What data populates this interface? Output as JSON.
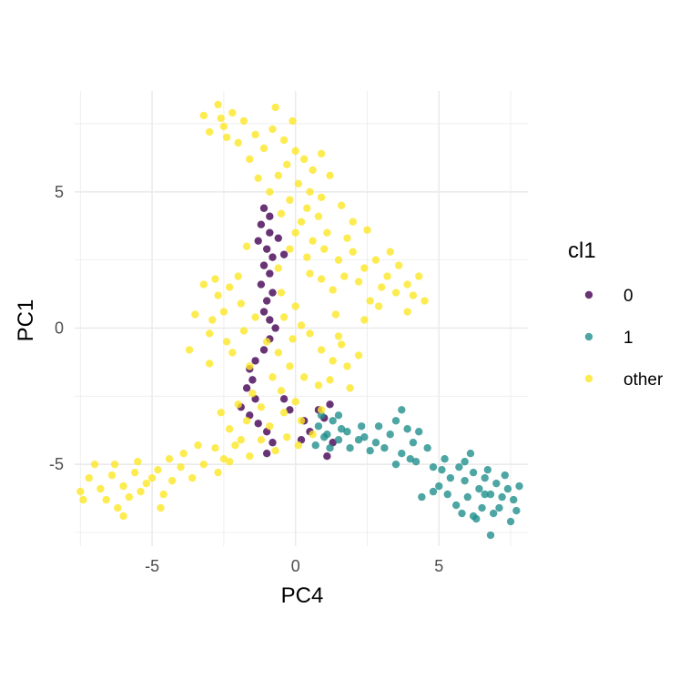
{
  "chart_data": {
    "type": "scatter",
    "title": "",
    "xlabel": "PC4",
    "ylabel": "PC1",
    "xlim": [
      -7.7,
      8.1
    ],
    "ylim": [
      -8.0,
      8.7
    ],
    "x_ticks": [
      -5,
      0,
      5
    ],
    "y_ticks": [
      -5,
      0,
      5
    ],
    "grid": true,
    "legend": {
      "title": "cl1",
      "position": "right"
    },
    "series": [
      {
        "name": "0",
        "color": "#440154",
        "points": [
          [
            -1.1,
            4.4
          ],
          [
            -0.9,
            4.1
          ],
          [
            -1.2,
            3.8
          ],
          [
            -0.9,
            3.5
          ],
          [
            -1.3,
            3.2
          ],
          [
            -1.0,
            2.9
          ],
          [
            -0.8,
            2.6
          ],
          [
            -1.1,
            2.3
          ],
          [
            -0.9,
            2.0
          ],
          [
            -1.2,
            1.6
          ],
          [
            -0.8,
            1.3
          ],
          [
            -1.0,
            1.0
          ],
          [
            -1.1,
            0.6
          ],
          [
            -0.9,
            0.3
          ],
          [
            -0.7,
            0.0
          ],
          [
            -0.9,
            -0.4
          ],
          [
            -1.1,
            -0.8
          ],
          [
            -1.4,
            -1.2
          ],
          [
            -1.6,
            -1.5
          ],
          [
            -1.5,
            -1.9
          ],
          [
            -1.7,
            -2.2
          ],
          [
            -1.4,
            -2.6
          ],
          [
            -1.9,
            -2.9
          ],
          [
            -1.6,
            -3.2
          ],
          [
            -1.3,
            -3.5
          ],
          [
            -1.0,
            -3.8
          ],
          [
            -0.8,
            -4.2
          ],
          [
            -1.0,
            -4.6
          ],
          [
            0.2,
            -4.1
          ],
          [
            0.5,
            -3.8
          ],
          [
            1.0,
            -3.3
          ],
          [
            1.2,
            -2.8
          ],
          [
            1.3,
            -4.2
          ],
          [
            1.1,
            -4.7
          ],
          [
            0.8,
            -3.0
          ],
          [
            -0.4,
            -2.6
          ],
          [
            -0.2,
            -3.0
          ],
          [
            0.3,
            -3.4
          ],
          [
            -0.6,
            3.3
          ],
          [
            -0.4,
            2.7
          ]
        ]
      },
      {
        "name": "1",
        "color": "#21908C",
        "points": [
          [
            0.9,
            -3.2
          ],
          [
            1.3,
            -3.4
          ],
          [
            1.6,
            -3.7
          ],
          [
            1.1,
            -3.9
          ],
          [
            0.8,
            -3.6
          ],
          [
            1.5,
            -4.1
          ],
          [
            1.8,
            -3.8
          ],
          [
            1.2,
            -4.4
          ],
          [
            0.7,
            -4.3
          ],
          [
            1.9,
            -4.4
          ],
          [
            2.2,
            -4.1
          ],
          [
            2.6,
            -4.5
          ],
          [
            2.4,
            -4.0
          ],
          [
            2.9,
            -3.6
          ],
          [
            3.3,
            -3.9
          ],
          [
            3.1,
            -4.4
          ],
          [
            3.7,
            -4.6
          ],
          [
            3.5,
            -3.4
          ],
          [
            3.9,
            -3.7
          ],
          [
            4.1,
            -4.2
          ],
          [
            4.3,
            -3.8
          ],
          [
            4.6,
            -4.4
          ],
          [
            4.2,
            -4.9
          ],
          [
            4.8,
            -5.1
          ],
          [
            5.1,
            -5.2
          ],
          [
            5.4,
            -5.5
          ],
          [
            5.0,
            -5.8
          ],
          [
            5.7,
            -5.1
          ],
          [
            5.9,
            -5.6
          ],
          [
            6.2,
            -5.3
          ],
          [
            6.4,
            -5.9
          ],
          [
            6.6,
            -5.5
          ],
          [
            6.8,
            -6.1
          ],
          [
            7.0,
            -5.7
          ],
          [
            7.2,
            -6.2
          ],
          [
            6.5,
            -6.6
          ],
          [
            6.2,
            -6.9
          ],
          [
            6.9,
            -6.8
          ],
          [
            7.4,
            -5.9
          ],
          [
            7.6,
            -6.3
          ],
          [
            7.8,
            -5.8
          ],
          [
            6.0,
            -6.2
          ],
          [
            5.6,
            -6.5
          ],
          [
            5.3,
            -6.1
          ],
          [
            4.8,
            -6.0
          ],
          [
            4.4,
            -6.2
          ],
          [
            6.1,
            -4.6
          ],
          [
            6.7,
            -5.2
          ],
          [
            7.3,
            -5.4
          ],
          [
            6.8,
            -7.6
          ],
          [
            7.5,
            -7.1
          ],
          [
            6.3,
            -7.0
          ],
          [
            5.8,
            -6.8
          ],
          [
            4.0,
            -4.8
          ],
          [
            3.5,
            -5.0
          ],
          [
            2.8,
            -4.2
          ],
          [
            2.3,
            -3.6
          ],
          [
            1.5,
            -3.2
          ],
          [
            1.0,
            -4.0
          ],
          [
            7.1,
            -6.6
          ],
          [
            5.9,
            -4.9
          ],
          [
            5.2,
            -4.8
          ],
          [
            3.7,
            -3.0
          ],
          [
            6.6,
            -6.1
          ],
          [
            7.7,
            -6.7
          ]
        ]
      },
      {
        "name": "other",
        "color": "#FDE725",
        "points": [
          [
            -3.2,
            7.8
          ],
          [
            -2.7,
            8.2
          ],
          [
            -2.2,
            7.9
          ],
          [
            -2.5,
            7.4
          ],
          [
            -3.0,
            7.2
          ],
          [
            -1.8,
            7.6
          ],
          [
            -1.4,
            7.1
          ],
          [
            -2.0,
            6.8
          ],
          [
            -1.1,
            6.6
          ],
          [
            -0.8,
            7.3
          ],
          [
            -0.4,
            6.9
          ],
          [
            0.0,
            6.5
          ],
          [
            -0.3,
            6.0
          ],
          [
            0.3,
            6.2
          ],
          [
            0.6,
            5.8
          ],
          [
            -0.6,
            5.6
          ],
          [
            0.1,
            5.3
          ],
          [
            0.5,
            5.0
          ],
          [
            -0.2,
            4.7
          ],
          [
            0.4,
            4.4
          ],
          [
            0.9,
            4.8
          ],
          [
            0.8,
            4.1
          ],
          [
            0.2,
            3.9
          ],
          [
            -0.5,
            4.2
          ],
          [
            0.0,
            3.5
          ],
          [
            0.6,
            3.2
          ],
          [
            -0.2,
            2.9
          ],
          [
            0.4,
            2.6
          ],
          [
            1.0,
            2.9
          ],
          [
            1.5,
            2.5
          ],
          [
            2.0,
            2.8
          ],
          [
            2.4,
            2.2
          ],
          [
            2.8,
            2.5
          ],
          [
            3.2,
            1.9
          ],
          [
            3.6,
            2.3
          ],
          [
            3.9,
            1.6
          ],
          [
            4.3,
            1.9
          ],
          [
            4.1,
            1.2
          ],
          [
            3.5,
            1.3
          ],
          [
            3.0,
            1.5
          ],
          [
            2.6,
            1.0
          ],
          [
            2.2,
            1.7
          ],
          [
            1.7,
            1.9
          ],
          [
            1.3,
            1.4
          ],
          [
            0.9,
            1.8
          ],
          [
            0.5,
            2.0
          ],
          [
            1.1,
            3.5
          ],
          [
            1.8,
            3.3
          ],
          [
            2.5,
            3.6
          ],
          [
            -0.5,
            1.3
          ],
          [
            0.0,
            0.8
          ],
          [
            -0.4,
            0.4
          ],
          [
            0.2,
            0.1
          ],
          [
            -0.1,
            -0.4
          ],
          [
            0.5,
            -0.2
          ],
          [
            0.9,
            -0.8
          ],
          [
            1.3,
            -1.2
          ],
          [
            1.6,
            -0.6
          ],
          [
            -0.6,
            -0.9
          ],
          [
            -0.2,
            -1.4
          ],
          [
            0.3,
            -1.8
          ],
          [
            0.8,
            -2.1
          ],
          [
            -0.5,
            -2.3
          ],
          [
            0.0,
            -2.7
          ],
          [
            -0.4,
            -3.1
          ],
          [
            0.2,
            -3.4
          ],
          [
            -0.9,
            -3.6
          ],
          [
            -0.3,
            -4.0
          ],
          [
            0.1,
            -4.3
          ],
          [
            -0.7,
            -4.5
          ],
          [
            -1.2,
            -4.1
          ],
          [
            -1.6,
            -4.7
          ],
          [
            -2.1,
            -4.3
          ],
          [
            -2.5,
            -4.8
          ],
          [
            -2.8,
            -4.4
          ],
          [
            -3.2,
            -5.0
          ],
          [
            -2.7,
            -5.3
          ],
          [
            -3.6,
            -5.5
          ],
          [
            -4.0,
            -5.1
          ],
          [
            -4.3,
            -5.6
          ],
          [
            -4.8,
            -5.2
          ],
          [
            -5.2,
            -5.7
          ],
          [
            -5.6,
            -5.3
          ],
          [
            -6.0,
            -5.8
          ],
          [
            -6.4,
            -5.4
          ],
          [
            -6.8,
            -5.9
          ],
          [
            -7.2,
            -5.5
          ],
          [
            -7.5,
            -6.0
          ],
          [
            -6.6,
            -6.3
          ],
          [
            -6.2,
            -6.6
          ],
          [
            -5.8,
            -6.2
          ],
          [
            -5.4,
            -6.0
          ],
          [
            -5.0,
            -5.5
          ],
          [
            -4.6,
            -6.1
          ],
          [
            -7.0,
            -5.0
          ],
          [
            -6.3,
            -5.0
          ],
          [
            -5.5,
            -4.9
          ],
          [
            -4.4,
            -4.8
          ],
          [
            -3.9,
            -4.6
          ],
          [
            -6.0,
            -6.9
          ],
          [
            -4.7,
            -6.6
          ],
          [
            -7.4,
            -6.3
          ],
          [
            -3.2,
            1.6
          ],
          [
            -2.7,
            1.2
          ],
          [
            -2.3,
            1.5
          ],
          [
            -1.9,
            0.9
          ],
          [
            -2.5,
            0.6
          ],
          [
            -2.9,
            0.3
          ],
          [
            -3.5,
            0.5
          ],
          [
            -3.0,
            -0.2
          ],
          [
            -2.4,
            -0.5
          ],
          [
            -1.8,
            -0.1
          ],
          [
            -2.2,
            -0.9
          ],
          [
            -1.6,
            -1.4
          ],
          [
            -2.8,
            1.8
          ],
          [
            -3.7,
            -0.8
          ],
          [
            -1.4,
            0.4
          ],
          [
            -2.0,
            1.9
          ],
          [
            -1.5,
            -2.4
          ],
          [
            -2.0,
            -2.8
          ],
          [
            -1.7,
            -3.4
          ],
          [
            -2.3,
            -3.7
          ],
          [
            -2.6,
            -3.1
          ],
          [
            -1.2,
            -2.9
          ],
          [
            -0.8,
            -1.8
          ],
          [
            -1.0,
            -0.5
          ],
          [
            0.6,
            -3.9
          ],
          [
            0.9,
            -3.0
          ],
          [
            1.2,
            -1.9
          ],
          [
            1.8,
            -1.4
          ],
          [
            2.2,
            -1.0
          ],
          [
            1.9,
            -2.2
          ],
          [
            -0.9,
            5.0
          ],
          [
            -1.3,
            5.5
          ],
          [
            -1.6,
            6.2
          ],
          [
            -2.4,
            7.0
          ],
          [
            -0.1,
            7.6
          ],
          [
            -0.7,
            8.1
          ],
          [
            0.9,
            6.4
          ],
          [
            1.2,
            5.6
          ],
          [
            1.6,
            4.5
          ],
          [
            2.0,
            3.9
          ],
          [
            3.3,
            2.8
          ],
          [
            4.5,
            1.0
          ],
          [
            3.9,
            0.6
          ],
          [
            2.9,
            0.8
          ],
          [
            1.4,
            0.5
          ],
          [
            -3.0,
            -1.3
          ],
          [
            -0.6,
            2.2
          ],
          [
            -1.7,
            3.0
          ],
          [
            -1.9,
            -4.1
          ],
          [
            -2.3,
            -4.9
          ],
          [
            -3.4,
            -4.3
          ],
          [
            1.5,
            -0.3
          ],
          [
            2.4,
            0.3
          ],
          [
            -2.6,
            7.7
          ]
        ]
      }
    ]
  }
}
